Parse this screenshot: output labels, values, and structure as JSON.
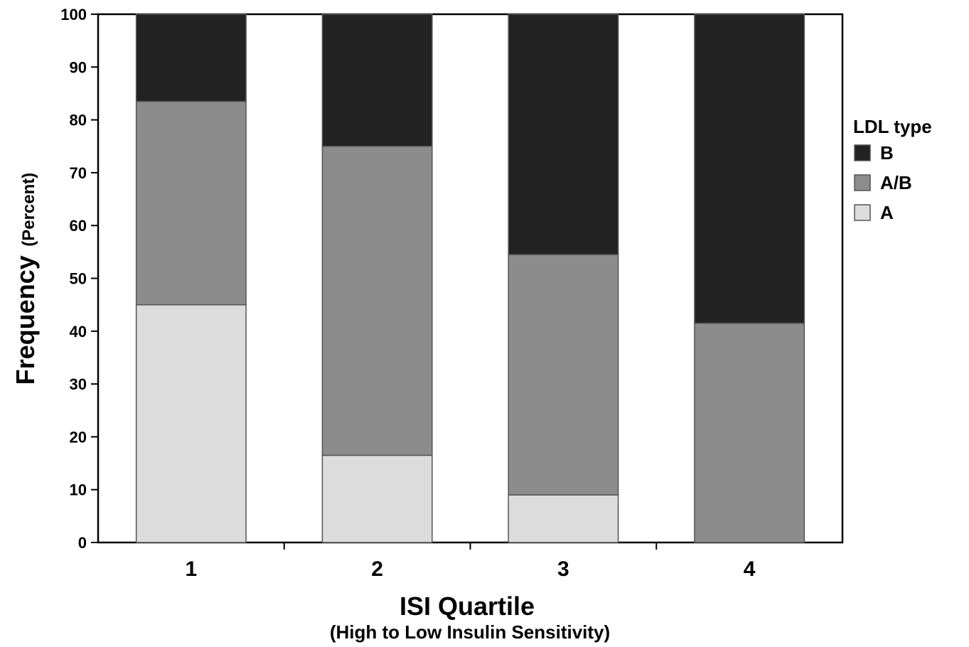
{
  "chart_data": {
    "type": "bar",
    "stacked": true,
    "categories": [
      "1",
      "2",
      "3",
      "4"
    ],
    "series": [
      {
        "name": "A",
        "values": [
          45,
          16.5,
          9,
          0
        ],
        "color": "#dcdcdc"
      },
      {
        "name": "A/B",
        "values": [
          38.5,
          58.5,
          45.5,
          41.5
        ],
        "color": "#8c8c8c"
      },
      {
        "name": "B",
        "values": [
          16.5,
          25,
          45.5,
          58.5
        ],
        "color": "#222222"
      }
    ],
    "ylim": [
      0,
      100
    ],
    "yticks": [
      0,
      10,
      20,
      30,
      40,
      50,
      60,
      70,
      80,
      90,
      100
    ],
    "xlabel": "ISI Quartile",
    "xlabel_sub": "(High to Low Insulin Sensitivity)",
    "ylabel": "Frequency",
    "ylabel_sub": "(Percent)",
    "legend": {
      "title": "LDL type",
      "entries": [
        "B",
        "A/B",
        "A"
      ],
      "placement": "right"
    },
    "grid": false
  }
}
